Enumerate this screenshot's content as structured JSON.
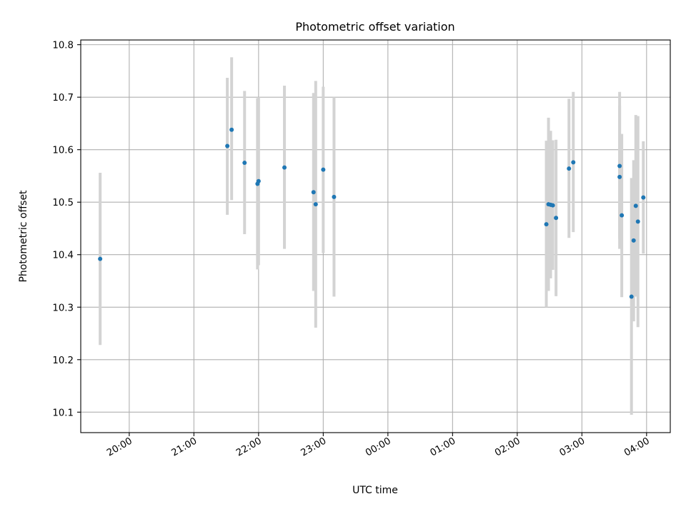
{
  "chart_data": {
    "type": "scatter",
    "title": "Photometric offset variation",
    "xlabel": "UTC time",
    "ylabel": "Photometric offset",
    "x_ticks": [
      "20:00",
      "21:00",
      "22:00",
      "23:00",
      "00:00",
      "01:00",
      "02:00",
      "03:00",
      "04:00"
    ],
    "y_ticks": [
      "10.1",
      "10.2",
      "10.3",
      "10.4",
      "10.5",
      "10.6",
      "10.7",
      "10.8"
    ],
    "ylim": [
      10.061,
      10.809
    ],
    "xlim": [
      "19:15",
      "04:22"
    ],
    "grid": true,
    "colors": {
      "point": "#1f77b4",
      "errorbar": "#d3d3d3"
    },
    "series": [
      {
        "points": [
          {
            "t": "19:33",
            "y": 10.392,
            "ylo": 10.228,
            "yhi": 10.556
          },
          {
            "t": "21:31",
            "y": 10.607,
            "ylo": 10.476,
            "yhi": 10.737
          },
          {
            "t": "21:35",
            "y": 10.638,
            "ylo": 10.504,
            "yhi": 10.776
          },
          {
            "t": "21:47",
            "y": 10.575,
            "ylo": 10.439,
            "yhi": 10.712
          },
          {
            "t": "21:59",
            "y": 10.535,
            "ylo": 10.372,
            "yhi": 10.698
          },
          {
            "t": "22:00",
            "y": 10.54,
            "ylo": 10.38,
            "yhi": 10.7
          },
          {
            "t": "22:24",
            "y": 10.566,
            "ylo": 10.411,
            "yhi": 10.722
          },
          {
            "t": "22:51",
            "y": 10.519,
            "ylo": 10.331,
            "yhi": 10.708
          },
          {
            "t": "22:53",
            "y": 10.496,
            "ylo": 10.261,
            "yhi": 10.731
          },
          {
            "t": "23:00",
            "y": 10.562,
            "ylo": 10.403,
            "yhi": 10.72
          },
          {
            "t": "23:10",
            "y": 10.51,
            "ylo": 10.32,
            "yhi": 10.7
          },
          {
            "t": "02:27",
            "y": 10.458,
            "ylo": 10.3,
            "yhi": 10.617
          },
          {
            "t": "02:29",
            "y": 10.496,
            "ylo": 10.331,
            "yhi": 10.661
          },
          {
            "t": "02:31",
            "y": 10.495,
            "ylo": 10.355,
            "yhi": 10.636
          },
          {
            "t": "02:33",
            "y": 10.494,
            "ylo": 10.371,
            "yhi": 10.618
          },
          {
            "t": "02:36",
            "y": 10.47,
            "ylo": 10.321,
            "yhi": 10.619
          },
          {
            "t": "02:48",
            "y": 10.564,
            "ylo": 10.432,
            "yhi": 10.697
          },
          {
            "t": "02:52",
            "y": 10.576,
            "ylo": 10.443,
            "yhi": 10.71
          },
          {
            "t": "03:35",
            "y": 10.569,
            "ylo": 10.43,
            "yhi": 10.71
          },
          {
            "t": "03:35",
            "y": 10.548,
            "ylo": 10.411,
            "yhi": 10.684
          },
          {
            "t": "03:37",
            "y": 10.475,
            "ylo": 10.319,
            "yhi": 10.63
          },
          {
            "t": "03:46",
            "y": 10.32,
            "ylo": 10.095,
            "yhi": 10.546
          },
          {
            "t": "03:48",
            "y": 10.427,
            "ylo": 10.273,
            "yhi": 10.58
          },
          {
            "t": "03:50",
            "y": 10.493,
            "ylo": 10.32,
            "yhi": 10.666
          },
          {
            "t": "03:52",
            "y": 10.463,
            "ylo": 10.262,
            "yhi": 10.664
          },
          {
            "t": "03:57",
            "y": 10.509,
            "ylo": 10.402,
            "yhi": 10.616
          }
        ]
      }
    ]
  }
}
